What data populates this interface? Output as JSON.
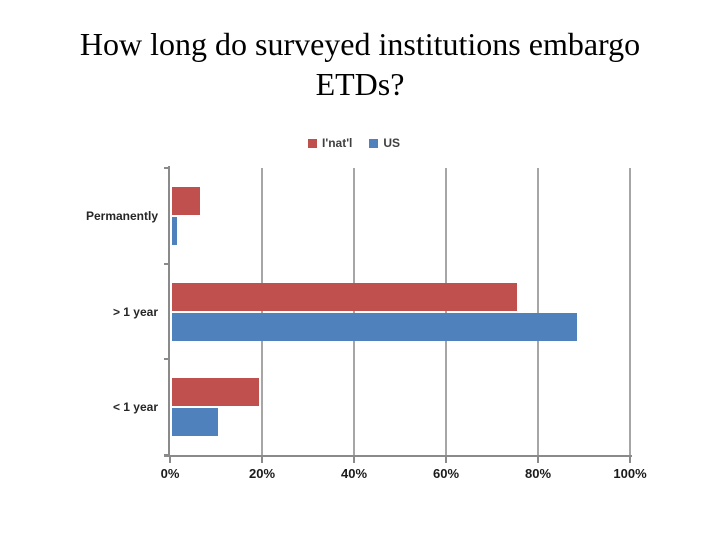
{
  "slide": {
    "title_line1": "How long do surveyed institutions embargo",
    "title_line2": "ETDs?"
  },
  "chart_data": {
    "type": "bar",
    "orientation": "horizontal",
    "title": "How long do surveyed institutions embargo ETDs?",
    "categories": [
      "Permanently",
      "> 1 year",
      "< 1 year"
    ],
    "series": [
      {
        "name": "I'nat'l",
        "color": "#C0504D",
        "values": [
          6,
          75,
          19
        ]
      },
      {
        "name": "US",
        "color": "#4F81BD",
        "values": [
          1,
          88,
          10
        ]
      }
    ],
    "x_ticks": [
      "0%",
      "20%",
      "40%",
      "60%",
      "80%",
      "100%"
    ],
    "x_tick_values": [
      0,
      20,
      40,
      60,
      80,
      100
    ],
    "xlim": [
      0,
      100
    ],
    "grid": true,
    "legend_position": "top",
    "axis_color": "#8A8A8A",
    "gridline_color": "#A6A6A6"
  }
}
